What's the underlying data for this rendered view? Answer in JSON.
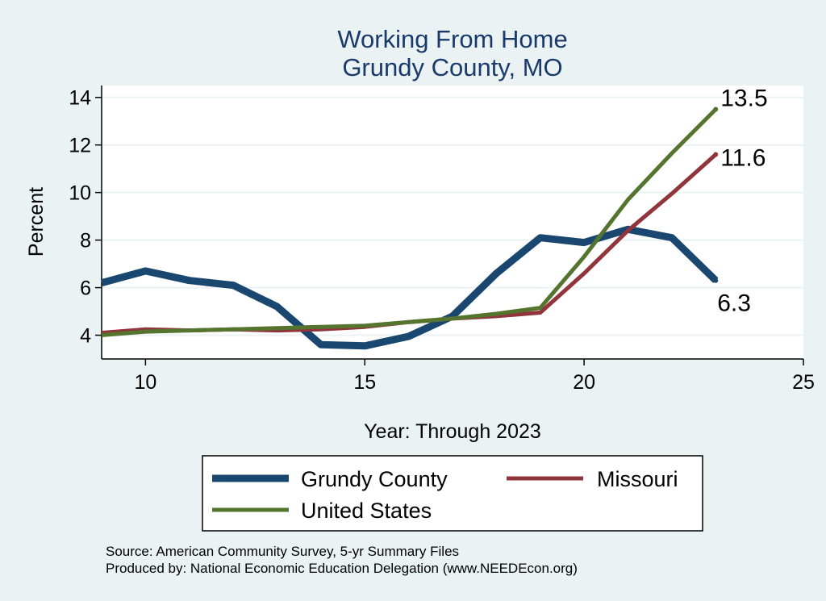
{
  "chart_data": {
    "type": "line",
    "title": [
      "Working From Home",
      "Grundy County, MO"
    ],
    "xlabel": "Year: Through 2023",
    "ylabel": "Percent",
    "xlim": [
      9,
      25
    ],
    "ylim": [
      3,
      14.5
    ],
    "xticks": [
      10,
      15,
      20,
      25
    ],
    "yticks": [
      4,
      6,
      8,
      10,
      12,
      14
    ],
    "grid": true,
    "x": [
      9,
      10,
      11,
      12,
      13,
      14,
      15,
      16,
      17,
      18,
      19,
      20,
      21,
      22,
      23
    ],
    "series": [
      {
        "name": "Grundy County",
        "color": "#1a476f",
        "width": 9,
        "values": [
          6.2,
          6.7,
          6.3,
          6.1,
          5.2,
          3.6,
          3.55,
          3.95,
          4.8,
          6.6,
          8.1,
          7.9,
          8.45,
          8.1,
          6.3
        ],
        "end_label": "6.3"
      },
      {
        "name": "Missouri",
        "color": "#90353b",
        "width": 5,
        "values": [
          4.1,
          4.25,
          4.2,
          4.25,
          4.2,
          4.25,
          4.35,
          4.55,
          4.7,
          4.8,
          4.95,
          6.6,
          8.4,
          9.95,
          11.6
        ],
        "end_label": "11.6"
      },
      {
        "name": "United States",
        "color": "#55752f",
        "width": 5,
        "values": [
          4.0,
          4.15,
          4.2,
          4.25,
          4.3,
          4.35,
          4.4,
          4.55,
          4.7,
          4.9,
          5.15,
          7.3,
          9.7,
          11.65,
          13.5
        ],
        "end_label": "13.5"
      }
    ],
    "legend_position": "bottom"
  },
  "notes": {
    "source": "Source: American Community Survey, 5-yr Summary Files",
    "produced": "Produced by: National Economic Education Delegation (www.NEEDEcon.org)"
  }
}
